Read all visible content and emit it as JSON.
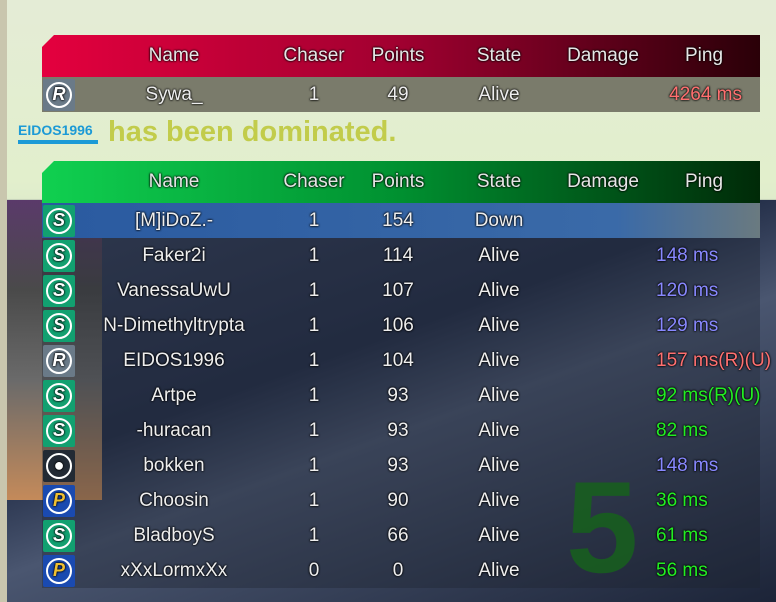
{
  "columns": {
    "name": "Name",
    "chaser": "Chaser",
    "points": "Points",
    "state": "State",
    "damage": "Damage",
    "ping": "Ping"
  },
  "notification": {
    "player": "EIDOS1996",
    "message": "has been dominated.",
    "countdown": "5"
  },
  "colors": {
    "red_team": "#e4003e",
    "green_team": "#10d050",
    "ping_good": "#22ee22",
    "ping_mid": "#8888ff",
    "ping_bad": "#ff7070"
  },
  "red_team": {
    "rows": [
      {
        "icon": "R",
        "name": "Sywa_",
        "chaser": "1",
        "points": "49",
        "state": "Alive",
        "damage": "",
        "ping": "4264 ms",
        "ping_color": "#ff7070"
      }
    ]
  },
  "green_team": {
    "rows": [
      {
        "icon": "S",
        "name": "[M]iDoZ.-",
        "chaser": "1",
        "points": "154",
        "state": "Down",
        "damage": "",
        "ping": "",
        "ping_color": "#ffffff"
      },
      {
        "icon": "S",
        "name": "Faker2i",
        "chaser": "1",
        "points": "114",
        "state": "Alive",
        "damage": "",
        "ping": "148 ms",
        "ping_color": "#8888ff"
      },
      {
        "icon": "S",
        "name": "VanessaUwU",
        "chaser": "1",
        "points": "107",
        "state": "Alive",
        "damage": "",
        "ping": "120 ms",
        "ping_color": "#8888ff"
      },
      {
        "icon": "S",
        "name": "N-Dimethyltrypta",
        "chaser": "1",
        "points": "106",
        "state": "Alive",
        "damage": "",
        "ping": "129 ms",
        "ping_color": "#8888ff"
      },
      {
        "icon": "R",
        "name": "EIDOS1996",
        "chaser": "1",
        "points": "104",
        "state": "Alive",
        "damage": "",
        "ping": "157 ms(R)(U)",
        "ping_color": "#ff7070"
      },
      {
        "icon": "S",
        "name": "Artpe",
        "chaser": "1",
        "points": "93",
        "state": "Alive",
        "damage": "",
        "ping": "92 ms(R)(U)",
        "ping_color": "#22ee22"
      },
      {
        "icon": "S",
        "name": "-huracan",
        "chaser": "1",
        "points": "93",
        "state": "Alive",
        "damage": "",
        "ping": "82 ms",
        "ping_color": "#22ee22"
      },
      {
        "icon": "O",
        "name": "bokken",
        "chaser": "1",
        "points": "93",
        "state": "Alive",
        "damage": "",
        "ping": "148 ms",
        "ping_color": "#8888ff"
      },
      {
        "icon": "P",
        "name": "Choosin",
        "chaser": "1",
        "points": "90",
        "state": "Alive",
        "damage": "",
        "ping": "36 ms",
        "ping_color": "#22ee22"
      },
      {
        "icon": "S",
        "name": "BladboyS",
        "chaser": "1",
        "points": "66",
        "state": "Alive",
        "damage": "",
        "ping": "61 ms",
        "ping_color": "#22ee22"
      },
      {
        "icon": "P",
        "name": "xXxLormxXx",
        "chaser": "0",
        "points": "0",
        "state": "Alive",
        "damage": "",
        "ping": "56 ms",
        "ping_color": "#22ee22"
      }
    ]
  }
}
